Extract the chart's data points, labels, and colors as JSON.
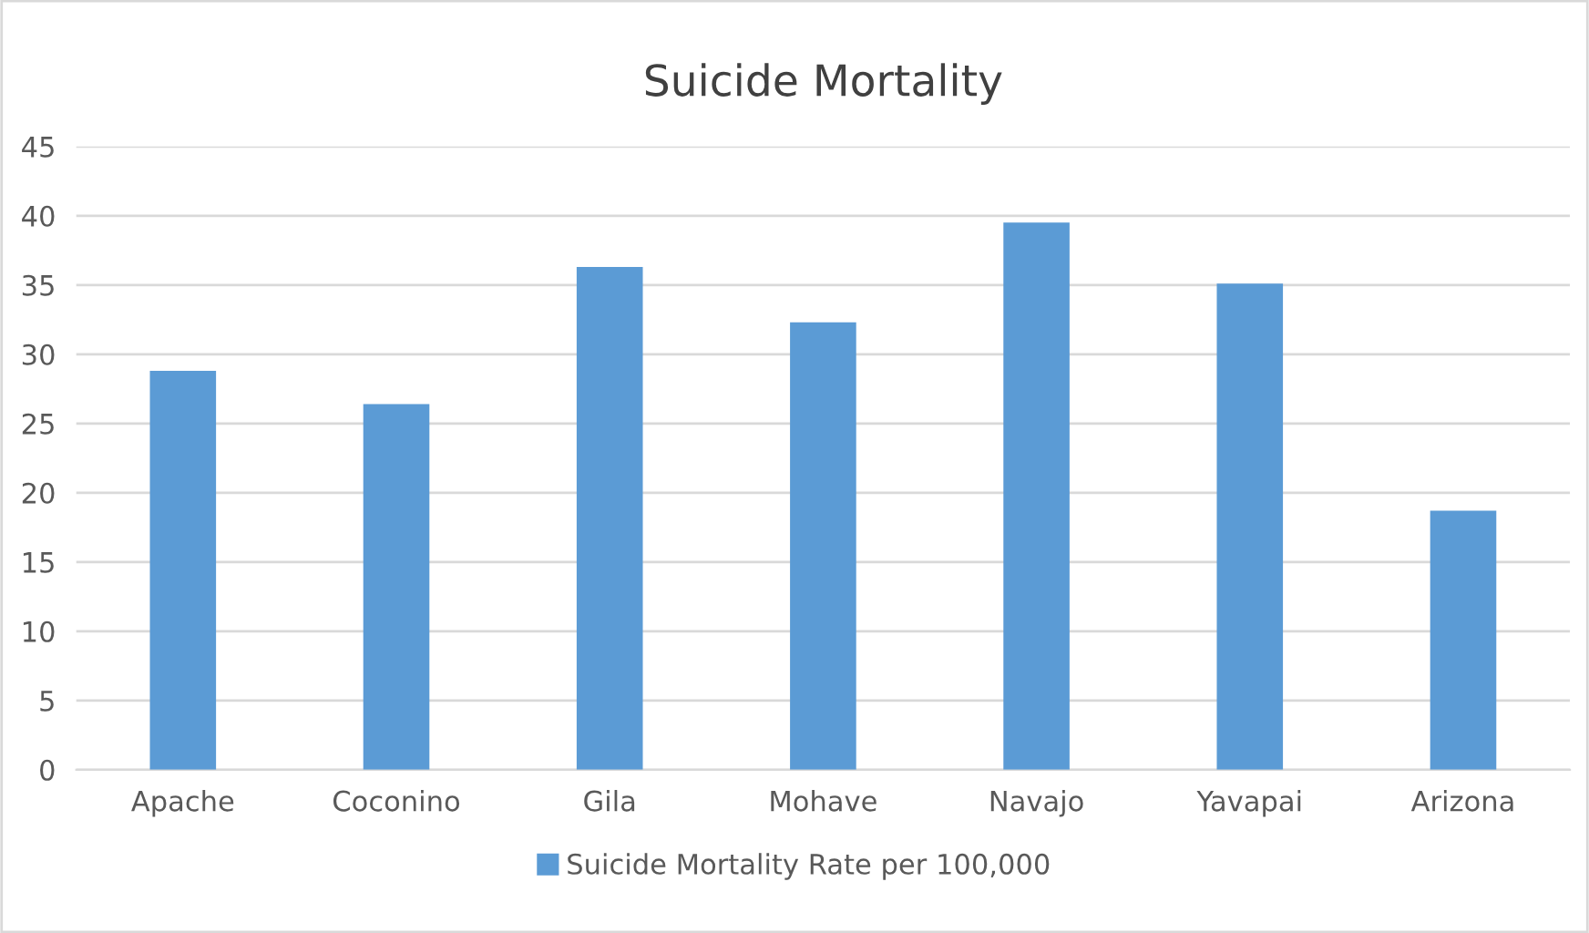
{
  "chart_data": {
    "type": "bar",
    "title": "Suicide Mortality",
    "categories": [
      "Apache",
      "Coconino",
      "Gila",
      "Mohave",
      "Navajo",
      "Yavapai",
      "Arizona"
    ],
    "series": [
      {
        "name": "Suicide Mortality Rate per 100,000",
        "color": "#5b9bd5",
        "values": [
          28.8,
          26.4,
          36.3,
          32.3,
          39.5,
          35.1,
          18.7
        ]
      }
    ],
    "ylim": [
      0,
      45
    ],
    "yticks": [
      0,
      5,
      10,
      15,
      20,
      25,
      30,
      35,
      40,
      45
    ],
    "grid": "y",
    "legend": "bottom"
  }
}
